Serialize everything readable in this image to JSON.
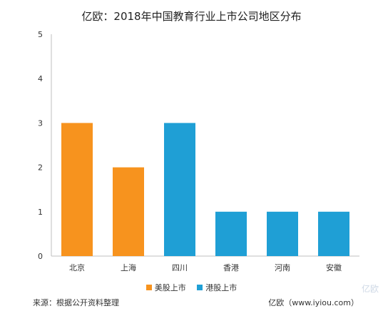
{
  "chart_data": {
    "type": "bar",
    "title": "亿欧：2018年中国教育行业上市公司地区分布",
    "categories": [
      "北京",
      "上海",
      "四川",
      "香港",
      "河南",
      "安徽"
    ],
    "values": [
      3,
      2,
      3,
      1,
      1,
      1
    ],
    "bar_series": [
      0,
      0,
      1,
      1,
      1,
      1
    ],
    "series": [
      {
        "name": "美股上市",
        "color": "#F7931E"
      },
      {
        "name": "港股上市",
        "color": "#1F9FD5"
      }
    ],
    "ylim": [
      0,
      5
    ],
    "yticks": [
      0,
      1,
      2,
      3,
      4,
      5
    ],
    "grid": false,
    "legend": "bottom"
  },
  "footer": {
    "source": "来源：根据公开资料整理",
    "credit": "亿欧（www.iyiou.com）",
    "watermark": "亿欧"
  }
}
